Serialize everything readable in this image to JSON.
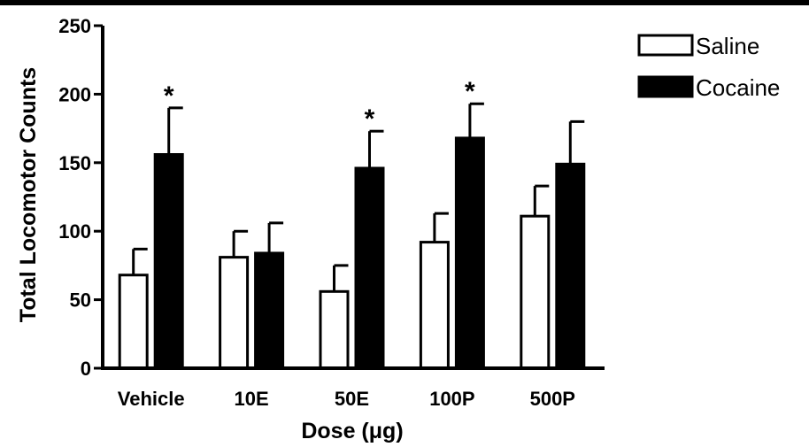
{
  "chart_data": {
    "type": "bar",
    "title": "",
    "xlabel": "Dose (μg)",
    "ylabel": "Total Locomotor Counts",
    "ylim": [
      0,
      250
    ],
    "yticks": [
      0,
      50,
      100,
      150,
      200,
      250
    ],
    "categories": [
      "Vehicle",
      "10E",
      "50E",
      "100P",
      "500P"
    ],
    "series": [
      {
        "name": "Saline",
        "color": "#ffffff",
        "values": [
          68,
          81,
          56,
          92,
          111
        ],
        "error": [
          19,
          19,
          19,
          21,
          22
        ],
        "significant": [
          false,
          false,
          false,
          false,
          false
        ]
      },
      {
        "name": "Cocaine",
        "color": "#000000",
        "values": [
          156,
          84,
          146,
          168,
          149
        ],
        "error": [
          34,
          22,
          27,
          25,
          31
        ],
        "significant": [
          true,
          false,
          true,
          true,
          false
        ]
      }
    ],
    "significance_marker": "*",
    "legend_position": "top-right",
    "grid": false
  }
}
